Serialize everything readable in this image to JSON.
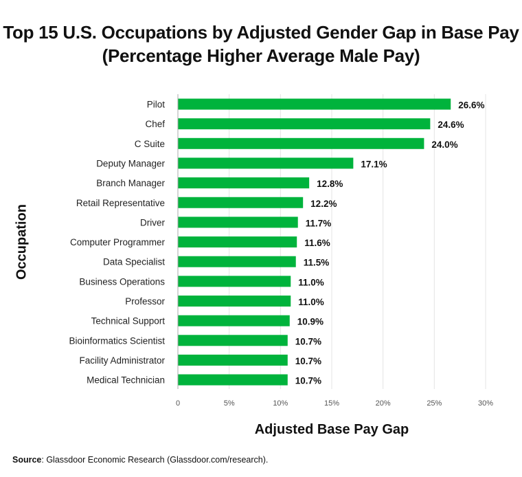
{
  "title_line1": "Top 15 U.S. Occupations by Adjusted Gender Gap in Base Pay",
  "title_line2": "(Percentage Higher Average Male Pay)",
  "source_label": "Source",
  "source_text": ": Glassdoor Economic Research (Glassdoor.com/research).",
  "colors": {
    "bar": "#00b33c",
    "grid": "#e4e4e4",
    "axis": "#aaaaaa"
  },
  "chart_data": {
    "type": "bar",
    "orientation": "horizontal",
    "xlabel": "Adjusted Base Pay Gap",
    "ylabel": "Occupation",
    "xlim": [
      0,
      30
    ],
    "xticks": [
      0,
      5,
      10,
      15,
      20,
      25,
      30
    ],
    "xtick_labels": [
      "0",
      "5%",
      "10%",
      "15%",
      "20%",
      "25%",
      "30%"
    ],
    "grid": true,
    "categories": [
      "Pilot",
      "Chef",
      "C Suite",
      "Deputy Manager",
      "Branch Manager",
      "Retail Representative",
      "Driver",
      "Computer Programmer",
      "Data Specialist",
      "Business Operations",
      "Professor",
      "Technical Support",
      "Bioinformatics Scientist",
      "Facility Administrator",
      "Medical Technician"
    ],
    "values": [
      26.6,
      24.6,
      24.0,
      17.1,
      12.8,
      12.2,
      11.7,
      11.6,
      11.5,
      11.0,
      11.0,
      10.9,
      10.7,
      10.7,
      10.7
    ],
    "value_labels": [
      "26.6%",
      "24.6%",
      "24.0%",
      "17.1%",
      "12.8%",
      "12.2%",
      "11.7%",
      "11.6%",
      "11.5%",
      "11.0%",
      "11.0%",
      "10.9%",
      "10.7%",
      "10.7%",
      "10.7%"
    ]
  }
}
